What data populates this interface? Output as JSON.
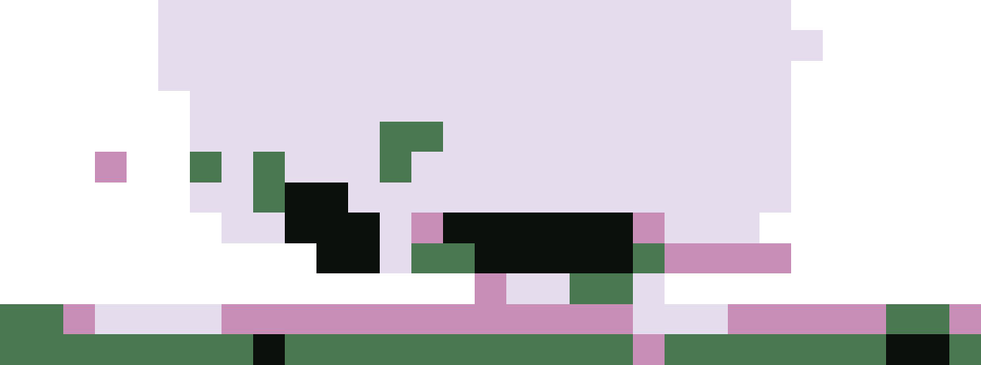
{
  "chart_data": {
    "type": "heatmap",
    "tick_labels": false,
    "grid": false,
    "cells": [
      [
        0,
        0,
        0,
        0,
        0,
        1,
        1,
        1,
        1,
        1,
        1,
        1,
        1,
        1,
        1,
        1,
        1,
        1,
        1,
        1,
        1,
        1,
        1,
        1,
        1,
        0,
        0,
        0,
        0,
        0,
        0
      ],
      [
        0,
        0,
        0,
        0,
        0,
        1,
        1,
        1,
        1,
        1,
        1,
        1,
        1,
        1,
        1,
        1,
        1,
        1,
        1,
        1,
        1,
        1,
        1,
        1,
        1,
        1,
        0,
        0,
        0,
        0,
        0
      ],
      [
        0,
        0,
        0,
        0,
        0,
        1,
        1,
        1,
        1,
        1,
        1,
        1,
        1,
        1,
        1,
        1,
        1,
        1,
        1,
        1,
        1,
        1,
        1,
        1,
        1,
        0,
        0,
        0,
        0,
        0,
        0
      ],
      [
        0,
        0,
        0,
        0,
        0,
        0,
        1,
        1,
        1,
        1,
        1,
        1,
        1,
        1,
        1,
        1,
        1,
        1,
        1,
        1,
        1,
        1,
        1,
        1,
        1,
        0,
        0,
        0,
        0,
        0,
        0
      ],
      [
        0,
        0,
        0,
        0,
        0,
        0,
        1,
        1,
        1,
        1,
        1,
        1,
        3,
        3,
        1,
        1,
        1,
        1,
        1,
        1,
        1,
        1,
        1,
        1,
        1,
        0,
        0,
        0,
        0,
        0,
        0
      ],
      [
        0,
        0,
        0,
        2,
        0,
        0,
        3,
        1,
        3,
        1,
        1,
        1,
        3,
        1,
        1,
        1,
        1,
        1,
        1,
        1,
        1,
        1,
        1,
        1,
        1,
        0,
        0,
        0,
        0,
        0,
        0
      ],
      [
        0,
        0,
        0,
        0,
        0,
        0,
        1,
        1,
        3,
        4,
        4,
        1,
        1,
        1,
        1,
        1,
        1,
        1,
        1,
        1,
        1,
        1,
        1,
        1,
        1,
        0,
        0,
        0,
        0,
        0,
        0
      ],
      [
        0,
        0,
        0,
        0,
        0,
        0,
        0,
        1,
        1,
        4,
        4,
        4,
        1,
        2,
        4,
        4,
        4,
        4,
        4,
        4,
        2,
        1,
        1,
        1,
        0,
        0,
        0,
        0,
        0,
        0,
        0
      ],
      [
        0,
        0,
        0,
        0,
        0,
        0,
        0,
        0,
        0,
        0,
        4,
        4,
        1,
        3,
        3,
        4,
        4,
        4,
        4,
        4,
        3,
        2,
        2,
        2,
        2,
        0,
        0,
        0,
        0,
        0,
        0
      ],
      [
        0,
        0,
        0,
        0,
        0,
        0,
        0,
        0,
        0,
        0,
        0,
        0,
        0,
        0,
        0,
        2,
        1,
        1,
        3,
        3,
        1,
        0,
        0,
        0,
        0,
        0,
        0,
        0,
        0,
        0,
        0
      ],
      [
        3,
        3,
        2,
        1,
        1,
        1,
        1,
        2,
        2,
        2,
        2,
        2,
        2,
        2,
        2,
        2,
        2,
        2,
        2,
        2,
        1,
        1,
        1,
        2,
        2,
        2,
        2,
        2,
        3,
        3,
        2
      ],
      [
        3,
        3,
        3,
        3,
        3,
        3,
        3,
        3,
        4,
        3,
        3,
        3,
        3,
        3,
        3,
        3,
        3,
        3,
        3,
        3,
        2,
        3,
        3,
        3,
        3,
        3,
        3,
        3,
        4,
        4,
        3
      ]
    ]
  }
}
